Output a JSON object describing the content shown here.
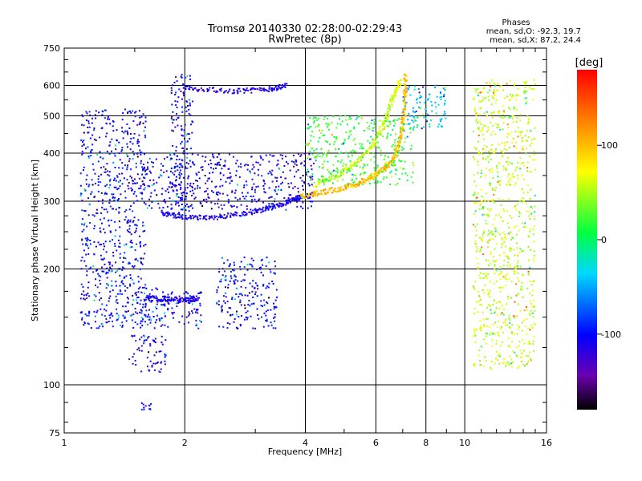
{
  "chart_data": {
    "type": "scatter",
    "title": "Tromsø 20140330 02:28:00-02:29:43",
    "subtitle": "RwPretec (8p)",
    "xlabel": "Frequency [MHz]",
    "ylabel": "Stationary phase Virtual Height [km]",
    "x_scale": "log",
    "y_scale": "log",
    "xlim": [
      1,
      16
    ],
    "ylim": [
      75,
      750
    ],
    "x_ticks": [
      1,
      2,
      4,
      6,
      8,
      10,
      16
    ],
    "x_tick_labels": [
      "1",
      "2",
      "4",
      "6",
      "8",
      "10",
      "16"
    ],
    "y_ticks": [
      75,
      100,
      200,
      300,
      400,
      500,
      600,
      750
    ],
    "y_tick_labels": [
      "75",
      "100",
      "200",
      "300",
      "400",
      "500",
      "600",
      "750"
    ],
    "grid": true,
    "stats": {
      "heading": "Phases",
      "line_o": "mean, sd,O: -92.3, 19.7",
      "line_x": "mean, sd,X: 87.2, 24.4"
    },
    "colorbar": {
      "label": "[deg]",
      "range": [
        -180,
        180
      ],
      "ticks": [
        100,
        0,
        -100
      ],
      "tick_labels": [
        "100",
        "0",
        "-100"
      ],
      "colormap": "rainbow"
    },
    "traces": [
      {
        "name": "",
        "phase": -110,
        "f_start": 1.75,
        "f_end": 3.9,
        "points": [
          [
            1.75,
            280
          ],
          [
            2.0,
            272
          ],
          [
            2.4,
            273
          ],
          [
            2.9,
            280
          ],
          [
            3.3,
            290
          ],
          [
            3.7,
            300
          ],
          [
            3.9,
            308
          ]
        ]
      },
      {
        "name": "",
        "phase": 100,
        "f_start": 3.9,
        "f_end": 7.1,
        "points": [
          [
            3.9,
            308
          ],
          [
            4.3,
            315
          ],
          [
            4.8,
            322
          ],
          [
            5.3,
            330
          ],
          [
            5.8,
            345
          ],
          [
            6.2,
            360
          ],
          [
            6.6,
            380
          ],
          [
            6.85,
            420
          ],
          [
            7.0,
            480
          ],
          [
            7.1,
            560
          ],
          [
            7.1,
            640
          ]
        ]
      },
      {
        "name": "",
        "phase": 60,
        "f_start": 3.9,
        "f_end": 6.9,
        "points": [
          [
            4.2,
            330
          ],
          [
            4.8,
            350
          ],
          [
            5.4,
            380
          ],
          [
            5.9,
            420
          ],
          [
            6.3,
            480
          ],
          [
            6.6,
            550
          ],
          [
            6.9,
            620
          ]
        ]
      },
      {
        "name": "",
        "phase": -110,
        "f_start": 1.6,
        "f_end": 2.15,
        "points": [
          [
            1.6,
            168
          ],
          [
            1.8,
            167
          ],
          [
            2.0,
            166
          ],
          [
            2.15,
            168
          ]
        ]
      },
      {
        "name": "",
        "phase": -110,
        "f_start": 2.0,
        "f_end": 3.6,
        "points": [
          [
            2.0,
            590
          ],
          [
            2.6,
            580
          ],
          [
            3.2,
            585
          ],
          [
            3.6,
            600
          ]
        ]
      }
    ],
    "clouds": [
      {
        "name": "",
        "phase": -110,
        "f": [
          1.55,
          4.2
        ],
        "h": [
          285,
          400
        ]
      },
      {
        "name": "",
        "phase": -105,
        "f": [
          1.85,
          2.1
        ],
        "h": [
          280,
          640
        ]
      },
      {
        "name": "",
        "phase": -105,
        "f": [
          1.5,
          2.2
        ],
        "h": [
          140,
          180
        ]
      },
      {
        "name": "",
        "phase": -100,
        "f": [
          2.4,
          3.4
        ],
        "h": [
          140,
          215
        ]
      },
      {
        "name": "",
        "phase": -110,
        "f": [
          1.45,
          1.8
        ],
        "h": [
          108,
          135
        ]
      },
      {
        "name": "",
        "phase": -100,
        "f": [
          1.55,
          1.65
        ],
        "h": [
          86,
          90
        ]
      },
      {
        "name": "",
        "phase": -100,
        "f": [
          1.1,
          1.6
        ],
        "h": [
          140,
          520
        ]
      },
      {
        "name": "",
        "phase": 20,
        "f": [
          4.0,
          7.5
        ],
        "h": [
          330,
          500
        ]
      },
      {
        "name": "",
        "phase": -40,
        "f": [
          7.0,
          9.0
        ],
        "h": [
          450,
          600
        ]
      },
      {
        "name": "",
        "phase": 60,
        "f": [
          10.5,
          15.0
        ],
        "h": [
          110,
          620
        ]
      }
    ]
  }
}
